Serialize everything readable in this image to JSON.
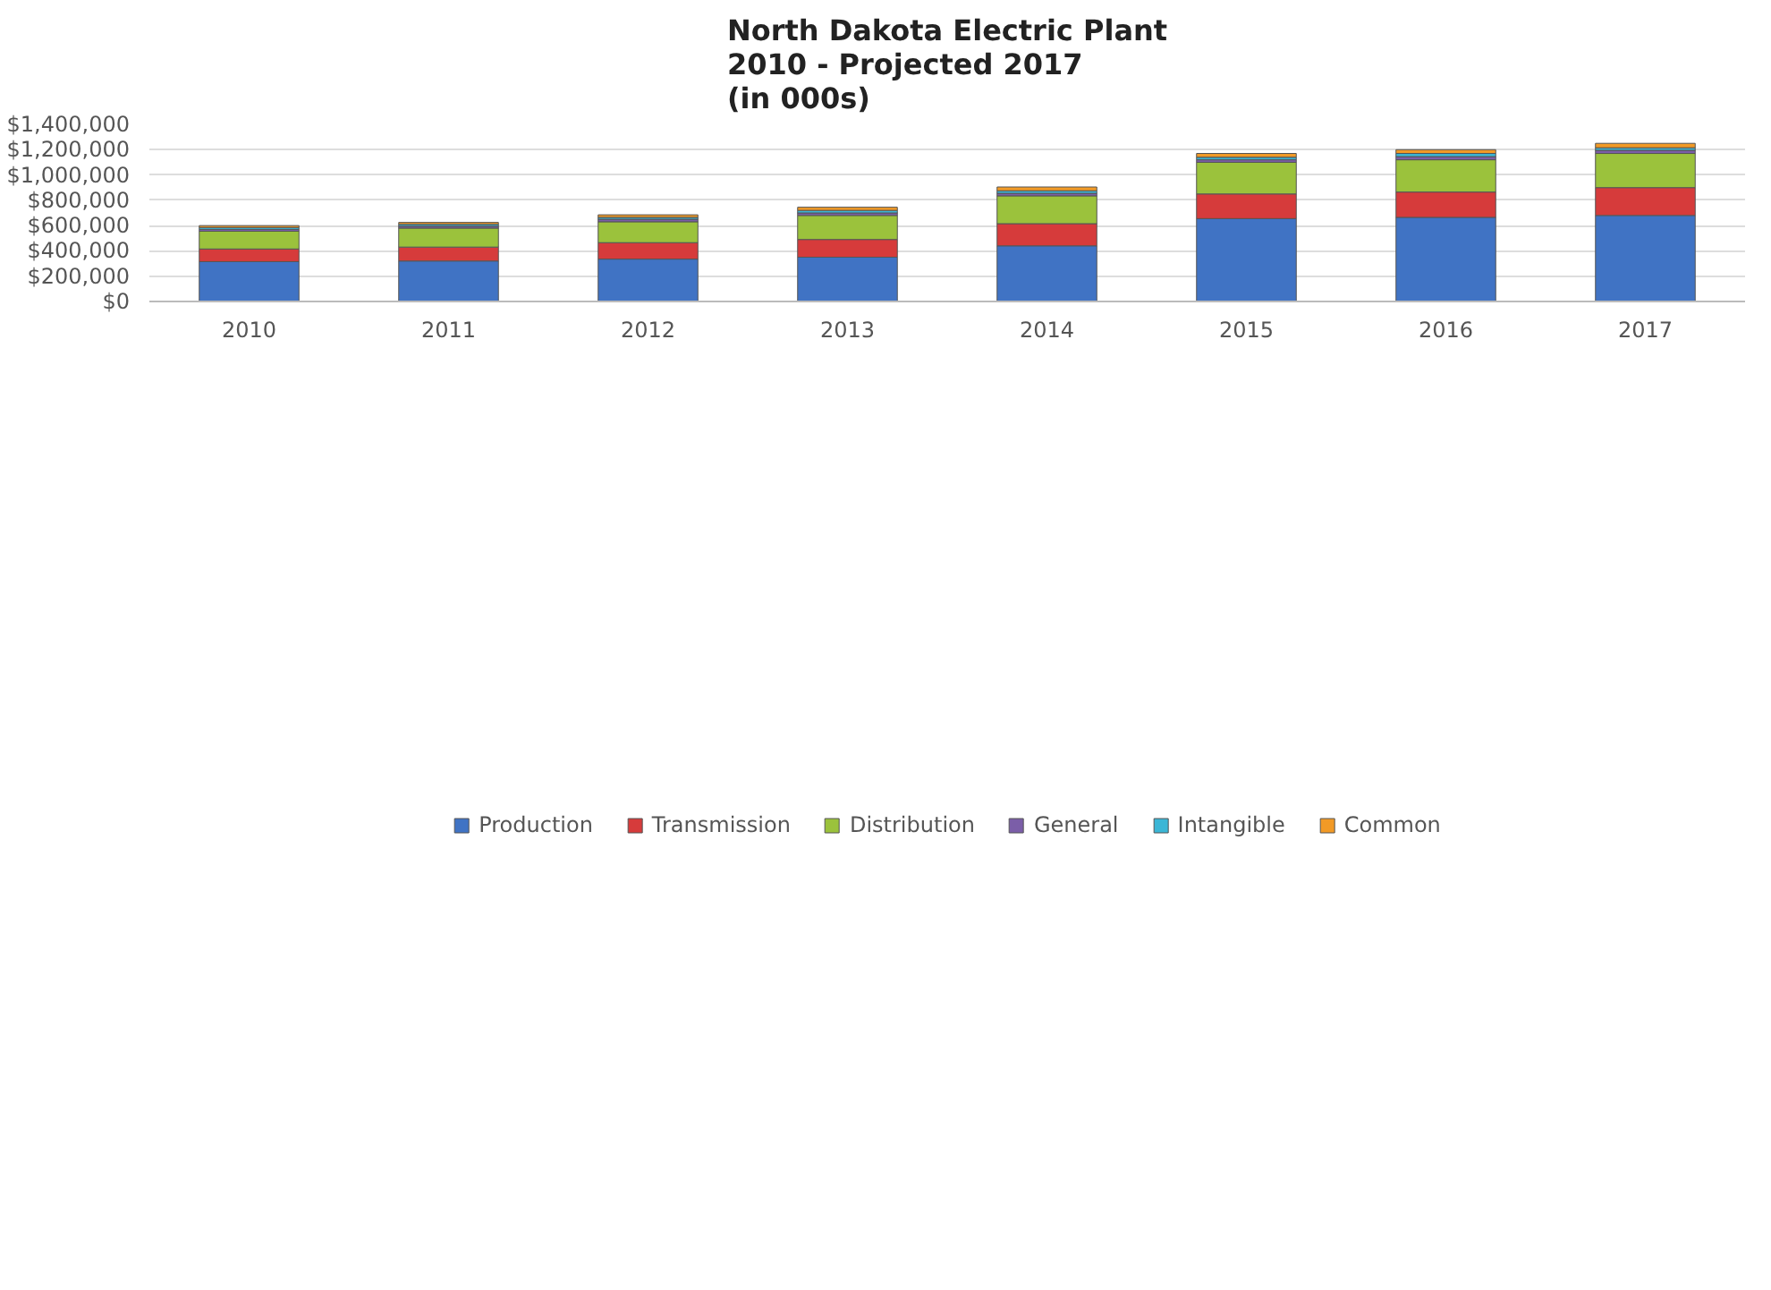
{
  "chart_data": {
    "type": "bar",
    "title": "North Dakota Electric Plant\n2010 - Projected 2017\n(in 000s)",
    "categories": [
      "2010",
      "2011",
      "2012",
      "2013",
      "2014",
      "2015",
      "2016",
      "2017"
    ],
    "stacked": true,
    "grid": "y",
    "legend": "bottom",
    "ylim": [
      0,
      1400000
    ],
    "yticks": [
      {
        "value": 0,
        "label": "$0"
      },
      {
        "value": 200000,
        "label": "$200,000"
      },
      {
        "value": 400000,
        "label": "$400,000"
      },
      {
        "value": 600000,
        "label": "$600,000"
      },
      {
        "value": 800000,
        "label": "$800,000"
      },
      {
        "value": 1000000,
        "label": "$1,000,000"
      },
      {
        "value": 1200000,
        "label": "$1,200,000"
      },
      {
        "value": 1400000,
        "label": "$1,400,000"
      }
    ],
    "series": [
      {
        "name": "Production",
        "color": "#4073c4",
        "values": [
          315000,
          320000,
          335000,
          350000,
          440000,
          655000,
          665000,
          680000
        ]
      },
      {
        "name": "Transmission",
        "color": "#d63b3b",
        "values": [
          100000,
          110000,
          130000,
          140000,
          175000,
          195000,
          200000,
          220000
        ]
      },
      {
        "name": "Distribution",
        "color": "#9bc23c",
        "values": [
          140000,
          150000,
          165000,
          190000,
          220000,
          250000,
          255000,
          270000
        ]
      },
      {
        "name": "General",
        "color": "#7b5ea8",
        "values": [
          15000,
          15000,
          20000,
          20000,
          20000,
          20000,
          25000,
          25000
        ]
      },
      {
        "name": "Intangible",
        "color": "#3bb6d6",
        "values": [
          15000,
          15000,
          15000,
          20000,
          20000,
          20000,
          25000,
          20000
        ]
      },
      {
        "name": "Common",
        "color": "#f29a26",
        "values": [
          15000,
          15000,
          20000,
          25000,
          30000,
          30000,
          30000,
          35000
        ]
      }
    ]
  }
}
